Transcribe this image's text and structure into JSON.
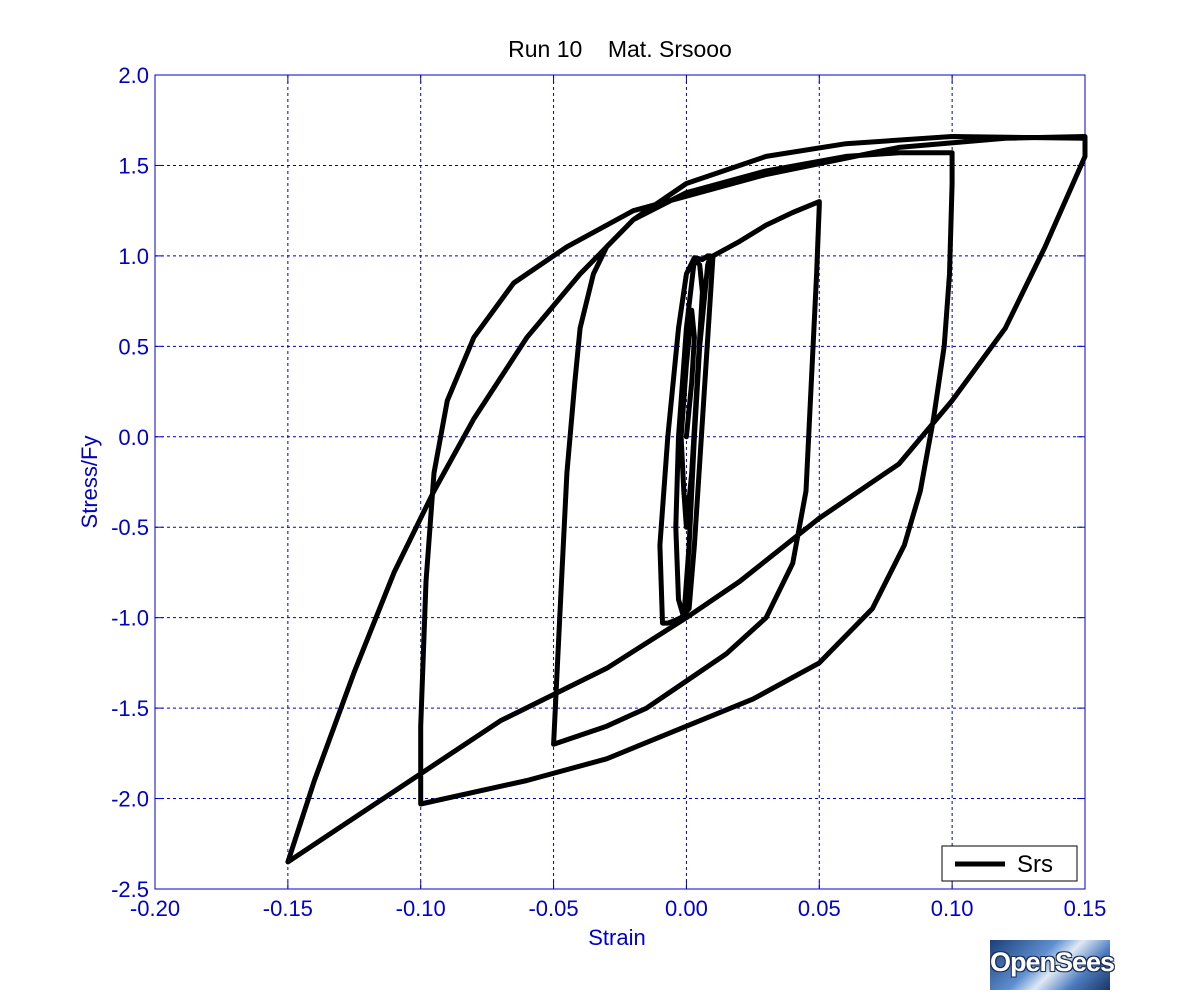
{
  "chart_data": {
    "type": "line",
    "title": "Run 10    Mat. Srsooo",
    "xlabel": "Strain",
    "ylabel": "Stress/Fy",
    "xlim": [
      -0.2,
      0.15
    ],
    "ylim": [
      -2.5,
      2.0
    ],
    "xticks": [
      -0.2,
      -0.15,
      -0.1,
      -0.05,
      0.0,
      0.05,
      0.1,
      0.15
    ],
    "xtick_labels": [
      "-0.20",
      "-0.15",
      "-0.10",
      "-0.05",
      "0.00",
      "0.05",
      "0.10",
      "0.15"
    ],
    "yticks": [
      -2.5,
      -2.0,
      -1.5,
      -1.0,
      -0.5,
      0.0,
      0.5,
      1.0,
      1.5,
      2.0
    ],
    "ytick_labels": [
      "-2.5",
      "-2.0",
      "-1.5",
      "-1.0",
      "-0.5",
      "0.0",
      "0.5",
      "1.0",
      "1.5",
      "2.0"
    ],
    "grid": true,
    "legend_position": "bottom-right",
    "series": [
      {
        "name": "Srs",
        "x": [
          0.0,
          0.002,
          0.003,
          0.002,
          0.0,
          -0.002,
          -0.001,
          0.0,
          0.002,
          0.004,
          0.006,
          0.005,
          0.003,
          0.0,
          -0.003,
          -0.004,
          -0.003,
          -0.001,
          0.001,
          0.003,
          0.005,
          0.008,
          0.009,
          0.008,
          0.006,
          0.003,
          0.0,
          -0.003,
          -0.007,
          -0.01,
          -0.009,
          -0.007,
          -0.005,
          -0.002,
          0.001,
          0.003,
          0.01,
          0.02,
          0.03,
          0.04,
          0.05,
          0.05,
          0.049,
          0.047,
          0.045,
          0.04,
          0.03,
          0.015,
          0.0,
          -0.015,
          -0.03,
          -0.05,
          -0.049,
          -0.047,
          -0.045,
          -0.042,
          -0.04,
          -0.035,
          -0.03,
          -0.02,
          0.0,
          0.03,
          0.06,
          0.08,
          0.1,
          0.1,
          0.099,
          0.097,
          0.093,
          0.088,
          0.082,
          0.07,
          0.05,
          0.025,
          0.0,
          -0.03,
          -0.06,
          -0.1,
          -0.1,
          -0.098,
          -0.095,
          -0.09,
          -0.08,
          -0.065,
          -0.045,
          -0.02,
          0.0,
          0.03,
          0.08,
          0.12,
          0.15,
          0.15,
          0.135,
          0.12,
          0.1,
          0.08,
          0.05,
          0.02,
          0.0,
          -0.03,
          -0.07,
          -0.15,
          -0.14,
          -0.125,
          -0.11,
          -0.095,
          -0.08,
          -0.06,
          -0.04,
          -0.02,
          0.0,
          0.03,
          0.06,
          0.1,
          0.15
        ],
        "y": [
          0.0,
          0.3,
          0.55,
          0.7,
          0.4,
          0.0,
          -0.3,
          -0.5,
          -0.2,
          0.3,
          0.8,
          0.95,
          0.98,
          0.6,
          0.0,
          -0.5,
          -0.9,
          -1.0,
          -0.6,
          0.0,
          0.5,
          0.95,
          1.0,
          1.0,
          0.98,
          0.99,
          0.9,
          0.6,
          0.0,
          -0.6,
          -1.03,
          -1.03,
          -1.02,
          -1.0,
          -0.95,
          -0.6,
          1.0,
          1.08,
          1.17,
          1.24,
          1.3,
          1.28,
          0.9,
          0.3,
          -0.3,
          -0.7,
          -1.0,
          -1.2,
          -1.35,
          -1.5,
          -1.6,
          -1.7,
          -1.4,
          -0.8,
          -0.2,
          0.3,
          0.6,
          0.9,
          1.05,
          1.2,
          1.35,
          1.47,
          1.55,
          1.57,
          1.57,
          1.4,
          0.9,
          0.5,
          0.1,
          -0.3,
          -0.6,
          -0.95,
          -1.25,
          -1.45,
          -1.6,
          -1.78,
          -1.9,
          -2.03,
          -1.6,
          -0.8,
          -0.2,
          0.2,
          0.55,
          0.85,
          1.05,
          1.25,
          1.33,
          1.45,
          1.6,
          1.65,
          1.66,
          1.55,
          1.05,
          0.6,
          0.2,
          -0.15,
          -0.45,
          -0.8,
          -1.0,
          -1.28,
          -1.57,
          -2.35,
          -1.9,
          -1.3,
          -0.75,
          -0.3,
          0.1,
          0.55,
          0.9,
          1.2,
          1.4,
          1.55,
          1.62,
          1.66,
          1.65
        ]
      }
    ]
  },
  "branding": {
    "logo_text": "OpenSees"
  },
  "colors": {
    "axes": "#0000cc",
    "grid": "#0000cc",
    "line": "#000000",
    "background": "#ffffff"
  }
}
